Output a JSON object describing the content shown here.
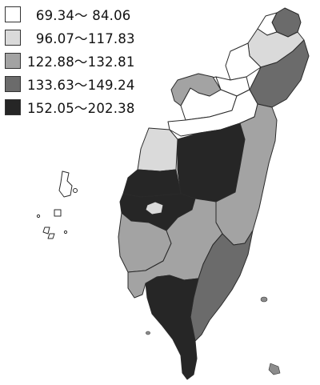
{
  "legend": {
    "classes": [
      {
        "label": "  69.34～ 84.06",
        "color": "#ffffff"
      },
      {
        "label": "  96.07～117.83",
        "color": "#dadada"
      },
      {
        "label": "122.88～132.81",
        "color": "#a3a3a3"
      },
      {
        "label": "133.63～149.24",
        "color": "#6b6b6b"
      },
      {
        "label": "152.05～202.38",
        "color": "#262626"
      }
    ]
  },
  "map": {
    "regions": [
      {
        "id": "keelung",
        "class_index": 3
      },
      {
        "id": "new-taipei",
        "class_index": 1
      },
      {
        "id": "taipei",
        "class_index": 0
      },
      {
        "id": "taoyuan",
        "class_index": 0
      },
      {
        "id": "hsinchu-county",
        "class_index": 0
      },
      {
        "id": "hsinchu-city",
        "class_index": 0
      },
      {
        "id": "miaoli",
        "class_index": 0
      },
      {
        "id": "yilan",
        "class_index": 3
      },
      {
        "id": "taichung-mountain",
        "class_index": 2
      },
      {
        "id": "taichung",
        "class_index": 0
      },
      {
        "id": "changhua",
        "class_index": 1
      },
      {
        "id": "nantou",
        "class_index": 4
      },
      {
        "id": "yunlin",
        "class_index": 4
      },
      {
        "id": "chiayi-county",
        "class_index": 4
      },
      {
        "id": "chiayi-city",
        "class_index": 1
      },
      {
        "id": "hualien",
        "class_index": 2
      },
      {
        "id": "tainan",
        "class_index": 2
      },
      {
        "id": "kaohsiung",
        "class_index": 2
      },
      {
        "id": "taitung",
        "class_index": 3
      },
      {
        "id": "pingtung",
        "class_index": 4
      },
      {
        "id": "penghu",
        "class_index": 0
      },
      {
        "id": "green-island",
        "class_index": 2
      },
      {
        "id": "orchid-island",
        "class_index": 2
      }
    ]
  }
}
